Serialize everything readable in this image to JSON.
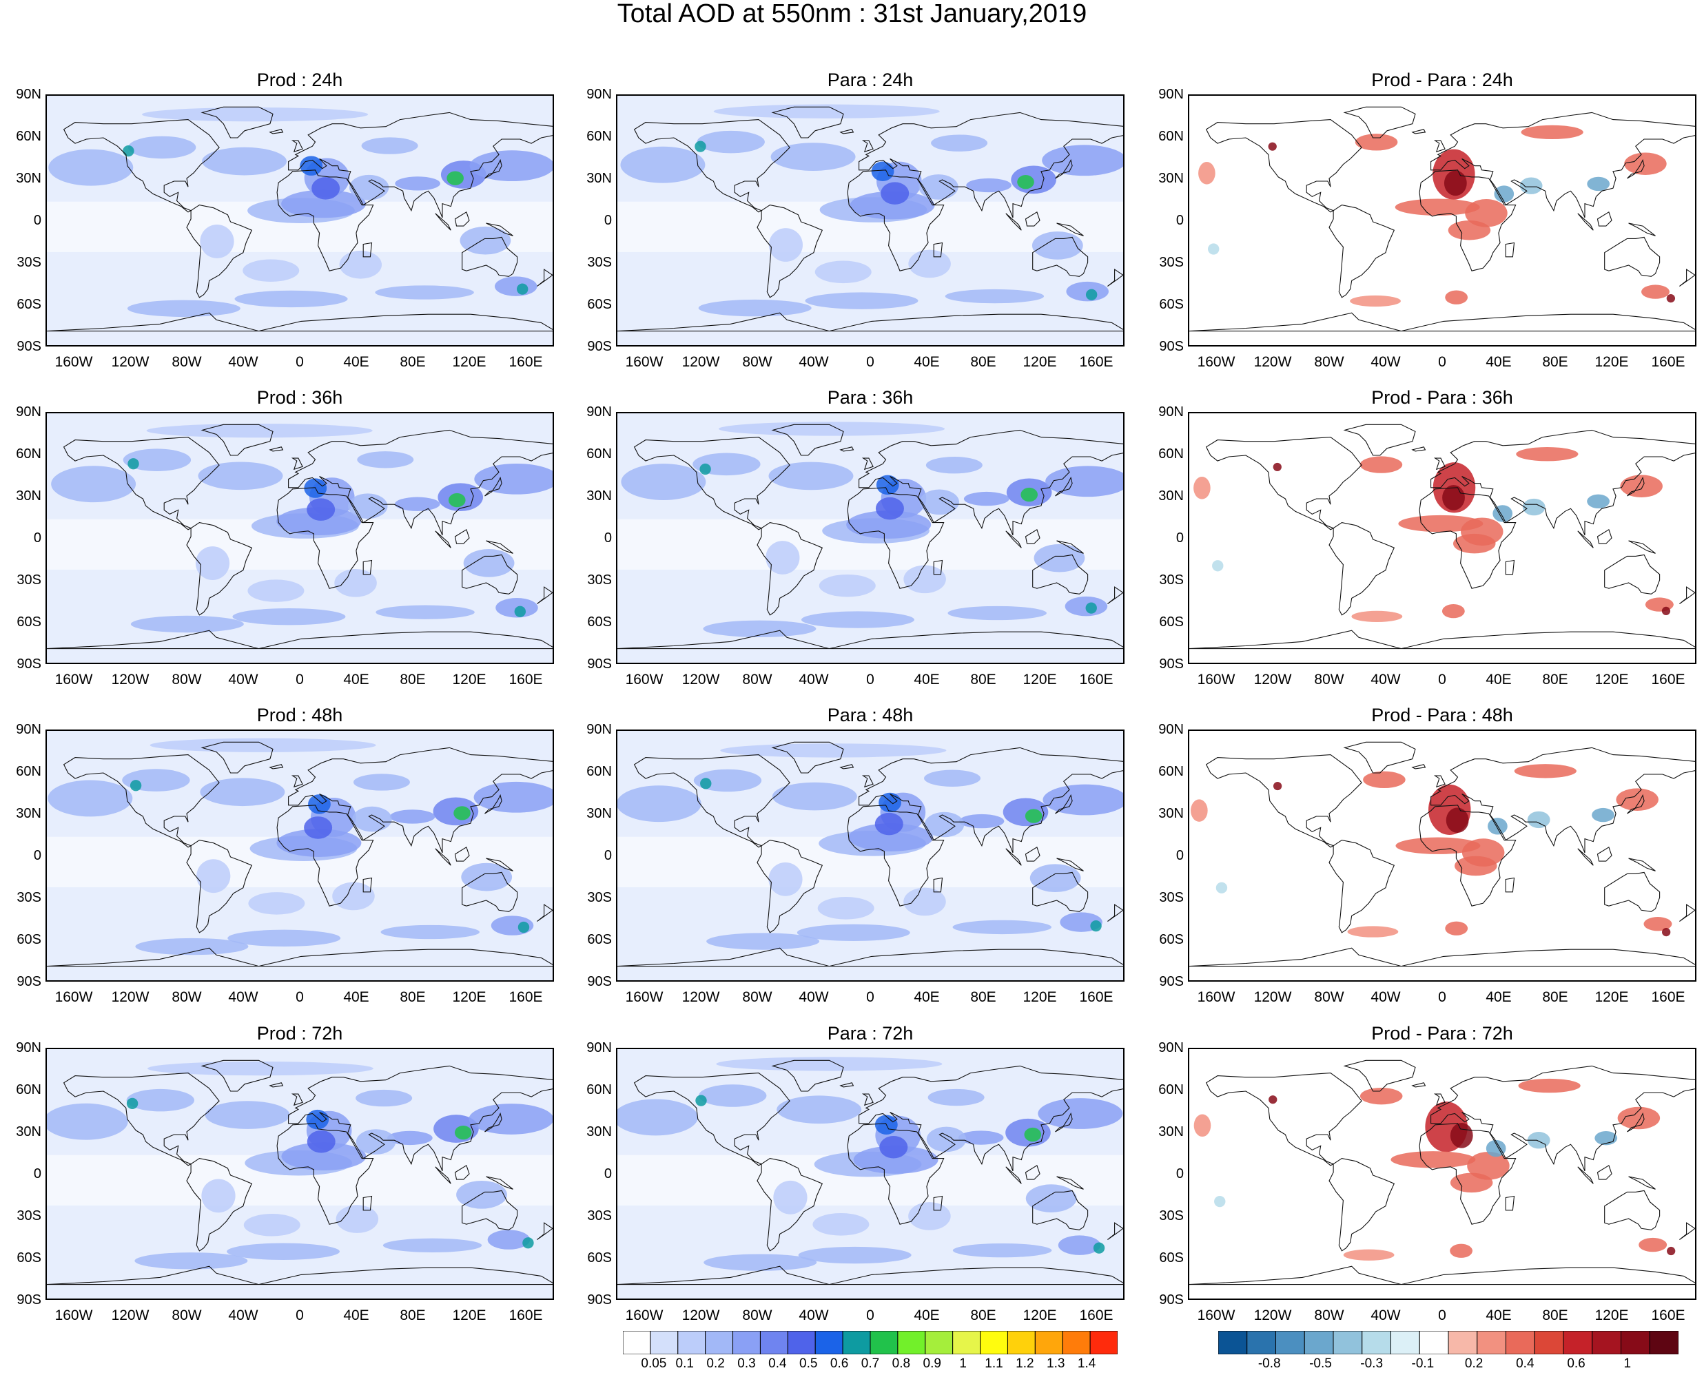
{
  "title": "Total AOD at 550nm : 31st January,2019",
  "lat_ticks": [
    "90N",
    "60N",
    "30N",
    "0",
    "30S",
    "60S",
    "90S"
  ],
  "lon_ticks": [
    "160W",
    "120W",
    "80W",
    "40W",
    "0",
    "40E",
    "80E",
    "120E",
    "160E"
  ],
  "panels": [
    {
      "title": "Prod : 24h",
      "kind": "abs"
    },
    {
      "title": "Para : 24h",
      "kind": "abs"
    },
    {
      "title": "Prod - Para : 24h",
      "kind": "diff"
    },
    {
      "title": "Prod : 36h",
      "kind": "abs"
    },
    {
      "title": "Para : 36h",
      "kind": "abs"
    },
    {
      "title": "Prod - Para : 36h",
      "kind": "diff"
    },
    {
      "title": "Prod : 48h",
      "kind": "abs"
    },
    {
      "title": "Para : 48h",
      "kind": "abs"
    },
    {
      "title": "Prod - Para : 48h",
      "kind": "diff"
    },
    {
      "title": "Prod : 72h",
      "kind": "abs"
    },
    {
      "title": "Para : 72h",
      "kind": "abs"
    },
    {
      "title": "Prod - Para : 72h",
      "kind": "diff"
    }
  ],
  "colorbar_aod": {
    "labels": [
      "0.05",
      "0.1",
      "0.2",
      "0.3",
      "0.4",
      "0.5",
      "0.6",
      "0.7",
      "0.8",
      "0.9",
      "1",
      "1.1",
      "1.2",
      "1.3",
      "1.4"
    ],
    "colors": [
      "#ffffff",
      "#d4e0fb",
      "#bccdfa",
      "#a2b8f7",
      "#8aa0f5",
      "#6f84f0",
      "#4f63ea",
      "#1b63e8",
      "#0e9ba1",
      "#21c24b",
      "#72f02a",
      "#a5ee3b",
      "#e6f54a",
      "#fffc0e",
      "#ffd10b",
      "#ffa60b",
      "#ff7c0a",
      "#ff2b0c"
    ]
  },
  "colorbar_diff": {
    "labels": [
      "-0.8",
      "-0.5",
      "-0.3",
      "-0.1",
      "0.2",
      "0.4",
      "0.6",
      "1"
    ],
    "colors": [
      "#0b5495",
      "#2a73ad",
      "#4b8fc0",
      "#6ba7cd",
      "#91c2dc",
      "#b6dcea",
      "#dcf0f7",
      "#ffffff",
      "#f7b8a9",
      "#f29180",
      "#e96a5a",
      "#dc4737",
      "#c52229",
      "#a51420",
      "#870b18",
      "#5e0512"
    ]
  }
}
